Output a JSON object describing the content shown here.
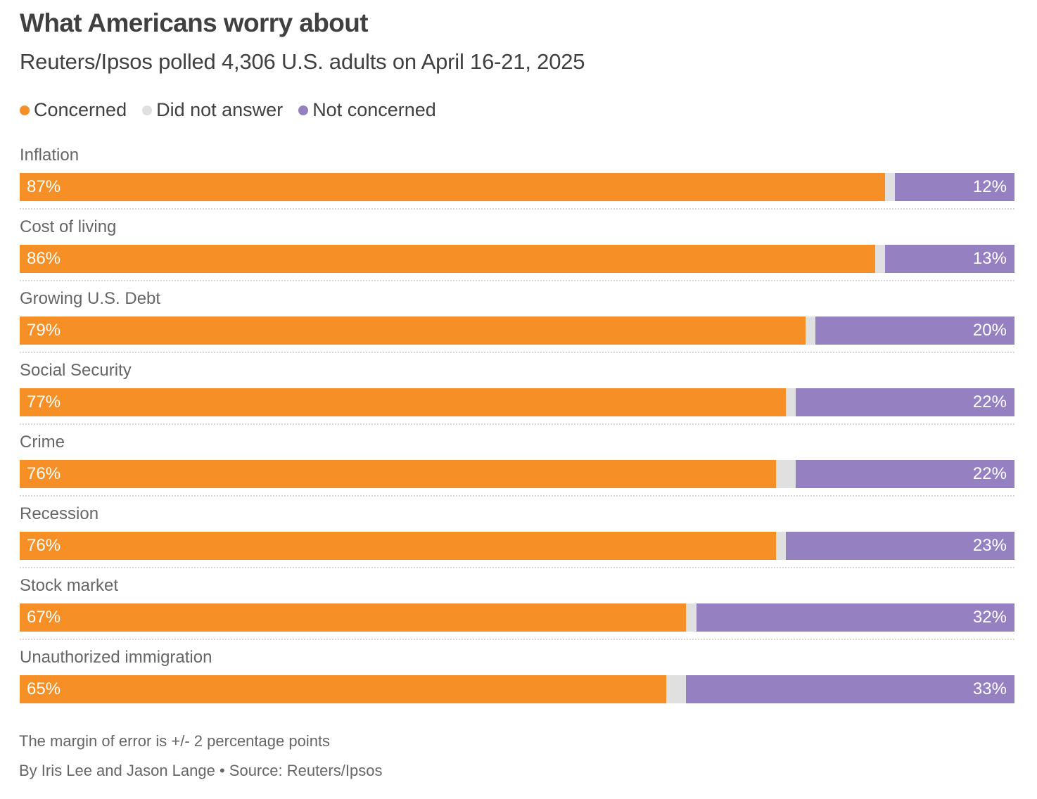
{
  "title": "What Americans worry about",
  "subtitle": "Reuters/Ipsos polled 4,306 U.S. adults on April 16-21, 2025",
  "colors": {
    "concerned": "#F58F26",
    "did_not_answer": "#E0E0E0",
    "not_concerned": "#9581C1"
  },
  "legend": [
    {
      "label": "Concerned",
      "key": "concerned"
    },
    {
      "label": "Did not answer",
      "key": "did_not_answer"
    },
    {
      "label": "Not concerned",
      "key": "not_concerned"
    }
  ],
  "footer": {
    "note": "The margin of error is +/- 2 percentage points",
    "credit": "By Iris Lee and Jason Lange • Source: Reuters/Ipsos"
  },
  "chart_data": {
    "type": "bar",
    "orientation": "horizontal",
    "stacked": true,
    "normalized": true,
    "title": "What Americans worry about",
    "subtitle": "Reuters/Ipsos polled 4,306 U.S. adults on April 16-21, 2025",
    "xlabel": "",
    "ylabel": "",
    "xlim": [
      0,
      100
    ],
    "grid": false,
    "legend_position": "top-left",
    "categories": [
      "Inflation",
      "Cost of living",
      "Growing U.S. Debt",
      "Social Security",
      "Crime",
      "Recession",
      "Stock market",
      "Unauthorized immigration"
    ],
    "series": [
      {
        "name": "Concerned",
        "key": "concerned",
        "values": [
          87,
          86,
          79,
          77,
          76,
          76,
          67,
          65
        ],
        "labels": [
          "87%",
          "86%",
          "79%",
          "77%",
          "76%",
          "76%",
          "67%",
          "65%"
        ]
      },
      {
        "name": "Did not answer",
        "key": "did_not_answer",
        "values": [
          1,
          1,
          1,
          1,
          2,
          1,
          1,
          2
        ],
        "labels": [
          "",
          "",
          "",
          "",
          "",
          "",
          "",
          ""
        ]
      },
      {
        "name": "Not concerned",
        "key": "not_concerned",
        "values": [
          12,
          13,
          20,
          22,
          22,
          23,
          32,
          33
        ],
        "labels": [
          "12%",
          "13%",
          "20%",
          "22%",
          "22%",
          "23%",
          "32%",
          "33%"
        ]
      }
    ]
  }
}
